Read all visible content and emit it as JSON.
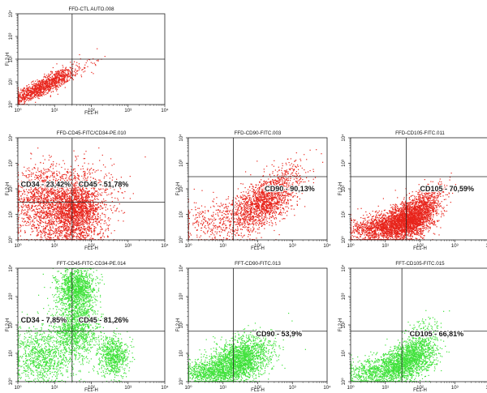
{
  "chart_data": [
    {
      "type": "scatter",
      "title": "FFD-CTL AUTO.008",
      "xlabel": "FL1-H",
      "ylabel": "FL2-H",
      "scale": "log",
      "xlim": [
        1,
        10000
      ],
      "ylim": [
        1,
        10000
      ],
      "tick_labels": [
        "10⁰",
        "10¹",
        "10²",
        "10³",
        "10⁴"
      ],
      "quadrant_gate": {
        "x": 30,
        "y": 100
      },
      "series": [
        {
          "color": "#e8251c",
          "clusters": [
            {
              "x": 3,
              "y": 4,
              "sx": 0.45,
              "sy": 0.35,
              "n": 900,
              "rho": 0.85
            },
            {
              "x": 12,
              "y": 15,
              "sx": 0.3,
              "sy": 0.25,
              "n": 350,
              "rho": 0.7
            },
            {
              "x": 60,
              "y": 60,
              "sx": 0.35,
              "sy": 0.25,
              "n": 50,
              "rho": 0.6
            }
          ]
        }
      ],
      "annotations": []
    },
    {
      "type": "scatter",
      "title": "FFD-CD45-FITC/CD34-PE.010",
      "xlabel": "FL1-H",
      "ylabel": "FL2-H",
      "scale": "log",
      "xlim": [
        1,
        10000
      ],
      "ylim": [
        1,
        10000
      ],
      "tick_labels": [
        "10⁰",
        "10¹",
        "10²",
        "10³",
        "10⁴"
      ],
      "quadrant_gate": {
        "x": 30,
        "y": 30
      },
      "series": [
        {
          "color": "#e8251c",
          "clusters": [
            {
              "x": 30,
              "y": 30,
              "sx": 0.55,
              "sy": 0.7,
              "n": 1500,
              "rho": 0.1
            },
            {
              "x": 40,
              "y": 12,
              "sx": 0.3,
              "sy": 0.4,
              "n": 900,
              "rho": 0.1
            },
            {
              "x": 4,
              "y": 40,
              "sx": 0.4,
              "sy": 0.65,
              "n": 800,
              "rho": 0.0
            },
            {
              "x": 25,
              "y": 2,
              "sx": 0.5,
              "sy": 0.25,
              "n": 350,
              "rho": 0.0
            }
          ]
        }
      ],
      "annotations": [
        {
          "text": "CD34 - 23,42%",
          "x": 1.2,
          "y": 120
        },
        {
          "text": "CD45 - 51,78%",
          "x": 45,
          "y": 120
        }
      ]
    },
    {
      "type": "scatter",
      "title": "FFD-CD90-FITC.003",
      "xlabel": "FL1-H",
      "ylabel": "FL2-H",
      "scale": "log",
      "xlim": [
        1,
        10000
      ],
      "ylim": [
        1,
        10000
      ],
      "tick_labels": [
        "10⁰",
        "10¹",
        "10²",
        "10³",
        "10⁴"
      ],
      "quadrant_gate": {
        "x": 20,
        "y": 300
      },
      "series": [
        {
          "color": "#e8251c",
          "clusters": [
            {
              "x": 150,
              "y": 30,
              "sx": 0.45,
              "sy": 0.55,
              "n": 1500,
              "rho": 0.55
            },
            {
              "x": 8,
              "y": 5,
              "sx": 0.6,
              "sy": 0.45,
              "n": 450,
              "rho": 0.2
            },
            {
              "x": 800,
              "y": 300,
              "sx": 0.3,
              "sy": 0.4,
              "n": 120,
              "rho": 0.4
            }
          ]
        }
      ],
      "annotations": [
        {
          "text": "CD90 - 90,13%",
          "x": 160,
          "y": 80
        }
      ]
    },
    {
      "type": "scatter",
      "title": "FFD-CD105-FITC.011",
      "xlabel": "FL1-H",
      "ylabel": "FL2-H",
      "scale": "log",
      "xlim": [
        1,
        10000
      ],
      "ylim": [
        1,
        10000
      ],
      "tick_labels": [
        "10⁰",
        "10¹",
        "10²",
        "10³",
        "10⁴"
      ],
      "quadrant_gate": {
        "x": 40,
        "y": 300
      },
      "series": [
        {
          "color": "#e8251c",
          "clusters": [
            {
              "x": 50,
              "y": 6,
              "sx": 0.35,
              "sy": 0.35,
              "n": 2200,
              "rho": 0.3
            },
            {
              "x": 8,
              "y": 3,
              "sx": 0.45,
              "sy": 0.3,
              "n": 1200,
              "rho": 0.25
            },
            {
              "x": 150,
              "y": 30,
              "sx": 0.3,
              "sy": 0.35,
              "n": 500,
              "rho": 0.5
            }
          ]
        }
      ],
      "annotations": [
        {
          "text": "CD105 - 70,59%",
          "x": 100,
          "y": 80
        }
      ]
    },
    {
      "type": "scatter",
      "title": "FFT-CD45-FITC-CD34-PE.014",
      "xlabel": "FL1-H",
      "ylabel": "FL2-H",
      "scale": "log",
      "xlim": [
        1,
        10000
      ],
      "ylim": [
        1,
        10000
      ],
      "tick_labels": [
        "10⁰",
        "10¹",
        "10²",
        "10³",
        "10⁴"
      ],
      "quadrant_gate": {
        "x": 30,
        "y": 60
      },
      "series": [
        {
          "color": "#3fe23a",
          "clusters": [
            {
              "x": 40,
              "y": 2000,
              "sx": 0.25,
              "sy": 0.35,
              "n": 1200,
              "rho": 0.0
            },
            {
              "x": 40,
              "y": 80,
              "sx": 0.3,
              "sy": 0.55,
              "n": 1200,
              "rho": 0.0
            },
            {
              "x": 5,
              "y": 8,
              "sx": 0.45,
              "sy": 0.5,
              "n": 1000,
              "rho": 0.1
            },
            {
              "x": 400,
              "y": 8,
              "sx": 0.2,
              "sy": 0.35,
              "n": 700,
              "rho": 0.0
            }
          ]
        }
      ],
      "annotations": [
        {
          "text": "CD34 - 7,85%",
          "x": 1.2,
          "y": 120
        },
        {
          "text": "CD45 - 81,26%",
          "x": 45,
          "y": 120
        }
      ]
    },
    {
      "type": "scatter",
      "title": "FFT-CD90-FITC.013",
      "xlabel": "FL1-H",
      "ylabel": "FL2-H",
      "scale": "log",
      "xlim": [
        1,
        10000
      ],
      "ylim": [
        1,
        10000
      ],
      "tick_labels": [
        "10⁰",
        "10¹",
        "10²",
        "10³",
        "10⁴"
      ],
      "quadrant_gate": {
        "x": 20,
        "y": 60
      },
      "series": [
        {
          "color": "#3fe23a",
          "clusters": [
            {
              "x": 30,
              "y": 6,
              "sx": 0.45,
              "sy": 0.4,
              "n": 2000,
              "rho": 0.35
            },
            {
              "x": 4,
              "y": 2,
              "sx": 0.45,
              "sy": 0.25,
              "n": 800,
              "rho": 0.1
            }
          ]
        }
      ],
      "annotations": [
        {
          "text": "CD90 - 53,9%",
          "x": 90,
          "y": 40
        }
      ]
    },
    {
      "type": "scatter",
      "title": "FFT-CD105-FITC.015",
      "xlabel": "FL1-H",
      "ylabel": "FL2-H",
      "scale": "log",
      "xlim": [
        1,
        10000
      ],
      "ylim": [
        1,
        10000
      ],
      "tick_labels": [
        "10⁰",
        "10¹",
        "10²",
        "10³",
        "10⁴"
      ],
      "quadrant_gate": {
        "x": 30,
        "y": 60
      },
      "series": [
        {
          "color": "#3fe23a",
          "clusters": [
            {
              "x": 40,
              "y": 5,
              "sx": 0.4,
              "sy": 0.35,
              "n": 1700,
              "rho": 0.35
            },
            {
              "x": 5,
              "y": 2,
              "sx": 0.45,
              "sy": 0.25,
              "n": 700,
              "rho": 0.1
            },
            {
              "x": 100,
              "y": 30,
              "sx": 0.3,
              "sy": 0.35,
              "n": 300,
              "rho": 0.4
            }
          ]
        }
      ],
      "annotations": [
        {
          "text": "CD105 - 66,81%",
          "x": 50,
          "y": 40
        }
      ]
    }
  ]
}
